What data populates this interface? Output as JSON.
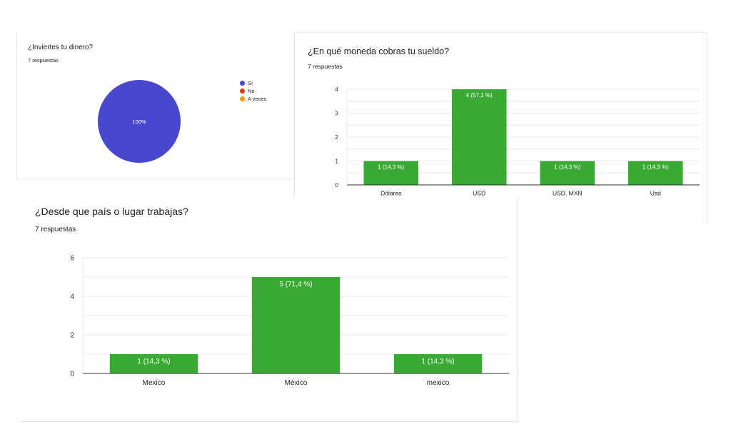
{
  "pie_card": {
    "title": "¿Inviertes tu dinero?",
    "responses": "7 respuestas",
    "legend": [
      {
        "label": "Sí",
        "color": "#4a47cf"
      },
      {
        "label": "No",
        "color": "#dc3912"
      },
      {
        "label": "A veces",
        "color": "#ff9900"
      }
    ]
  },
  "currency_card": {
    "title": "¿En qué moneda cobras tu sueldo?",
    "responses": "7 respuestas"
  },
  "country_card": {
    "title": "¿Desde que país o lugar trabajas?",
    "responses": "7 respuestas"
  },
  "colors": {
    "bar": "#3aaa35",
    "pie": "#4a47cf",
    "grid": "#e8e8e8",
    "axis": "#333333"
  },
  "chart_data": [
    {
      "type": "pie",
      "categories": [
        "Sí",
        "No",
        "A veces"
      ],
      "values": [
        7,
        0,
        0
      ],
      "slice_labels": [
        "100%",
        "",
        ""
      ],
      "legend": "right"
    },
    {
      "type": "bar",
      "categories": [
        "Dólares",
        "USD",
        "USD, MXN",
        "Usd"
      ],
      "values": [
        1,
        4,
        1,
        1
      ],
      "data_labels": [
        "1 (14,3 %)",
        "4 (57,1 %)",
        "1 (14,3 %)",
        "1 (14,3 %)"
      ],
      "yticks": [
        0,
        1,
        2,
        3,
        4
      ],
      "ylim": [
        0,
        4
      ],
      "grid": true
    },
    {
      "type": "bar",
      "categories": [
        "Mexico",
        "México",
        "mexico"
      ],
      "values": [
        1,
        5,
        1
      ],
      "data_labels": [
        "1 (14,3 %)",
        "5 (71,4 %)",
        "1 (14,3 %)"
      ],
      "yticks": [
        0,
        2,
        4,
        6
      ],
      "ylim": [
        0,
        6
      ],
      "grid": true
    }
  ]
}
